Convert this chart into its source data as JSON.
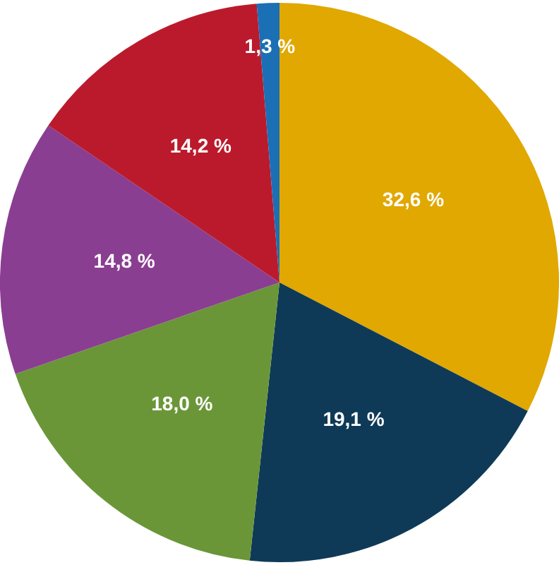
{
  "chart_data": {
    "type": "pie",
    "categories": [
      null,
      null,
      null,
      null,
      null,
      null
    ],
    "values": [
      32.6,
      19.1,
      18.0,
      14.8,
      14.2,
      1.3
    ],
    "value_labels": [
      "32,6 %",
      "19,1 %",
      "18,0 %",
      "14,8 %",
      "14,2 %",
      "1,3 %"
    ],
    "colors": [
      "#e0a800",
      "#0f3a57",
      "#6a9638",
      "#8a3e91",
      "#bb1a2c",
      "#1b6fb5"
    ],
    "legend": false
  }
}
